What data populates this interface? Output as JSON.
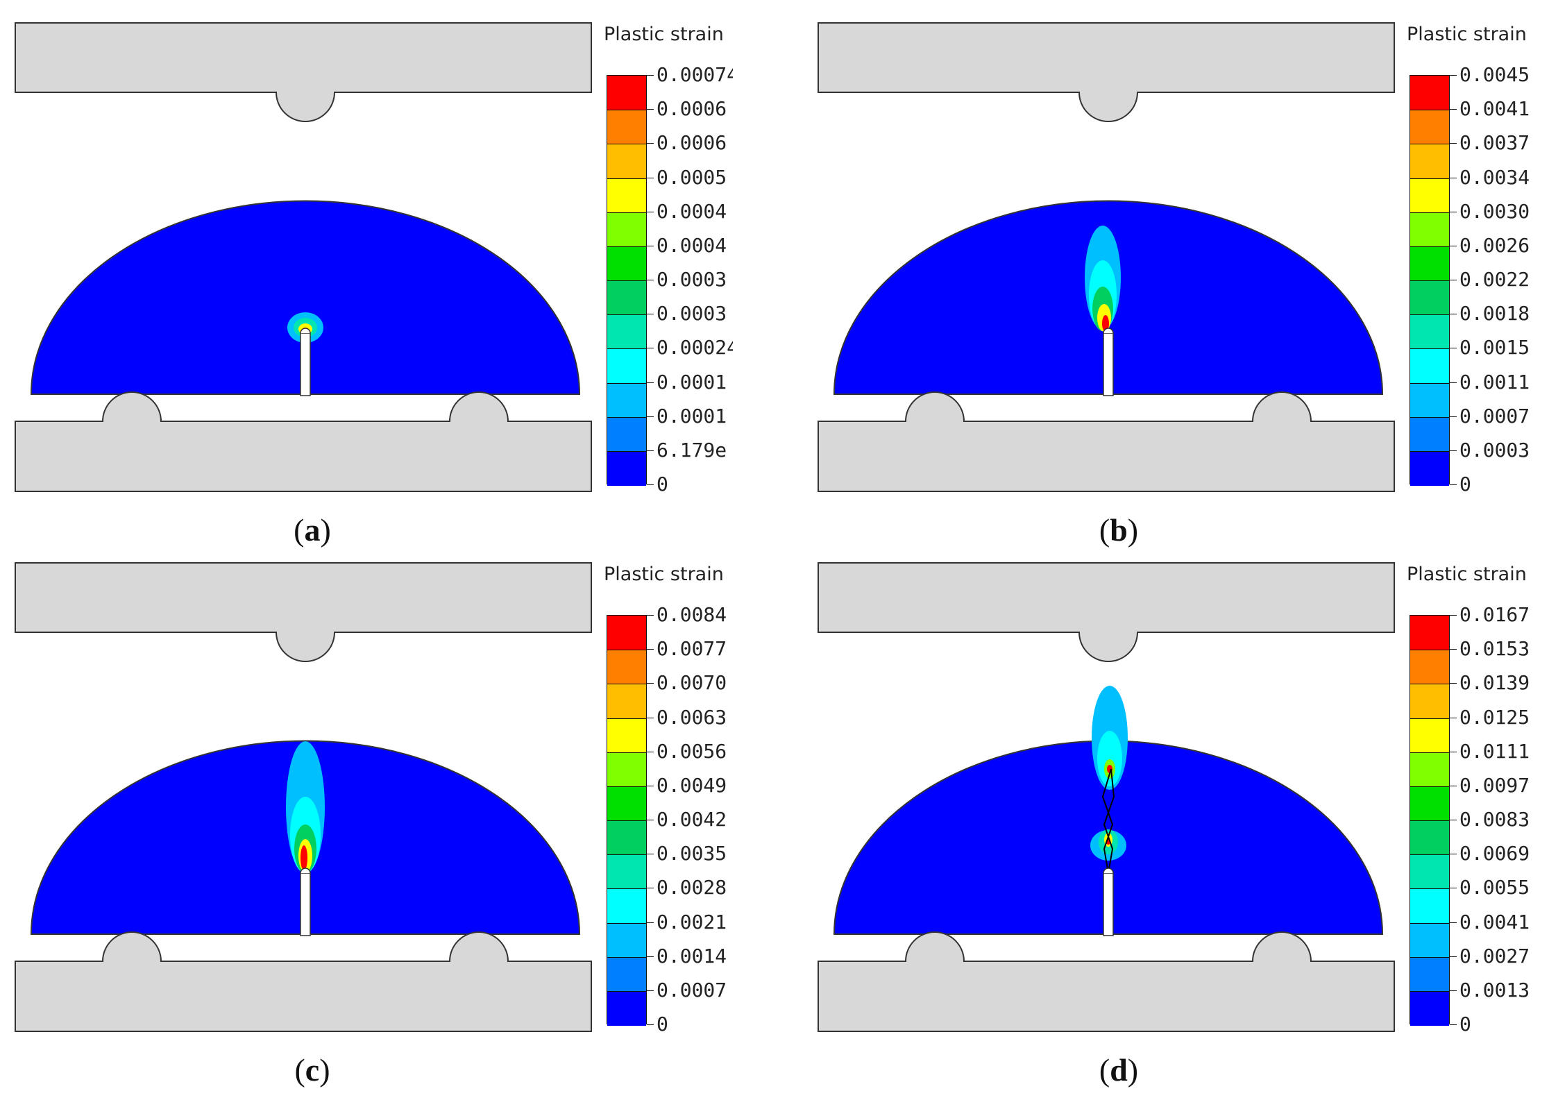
{
  "legend_colors": [
    "#ff0000",
    "#ff7f00",
    "#ffbf00",
    "#ffff00",
    "#7fff00",
    "#00e000",
    "#00d060",
    "#00e6b0",
    "#00ffff",
    "#00bfff",
    "#0080ff",
    "#0000ff"
  ],
  "fill_colors": {
    "specimen": "#0000ff",
    "fixture": "#d8d8d8",
    "outline": "#333333",
    "crack": "#ffffff"
  },
  "panels": [
    {
      "id": "a",
      "caption_letter": "a",
      "legend_title": "Plastic strain",
      "legend_labels": [
        "0.00074",
        "0.0006",
        "0.0006",
        "0.0005",
        "0.0004",
        "0.0004",
        "0.0003",
        "0.0003",
        "0.00024",
        "0.0001",
        "0.0001",
        "6.179e",
        "0"
      ],
      "damage_stage": 1
    },
    {
      "id": "b",
      "caption_letter": "b",
      "legend_title": "Plastic strain",
      "legend_labels": [
        "0.0045",
        "0.0041",
        "0.0037",
        "0.0034",
        "0.0030",
        "0.0026",
        "0.0022",
        "0.0018",
        "0.0015",
        "0.0011",
        "0.0007",
        "0.0003",
        "0"
      ],
      "damage_stage": 2
    },
    {
      "id": "c",
      "caption_letter": "c",
      "legend_title": "Plastic strain",
      "legend_labels": [
        "0.0084",
        "0.0077",
        "0.0070",
        "0.0063",
        "0.0056",
        "0.0049",
        "0.0042",
        "0.0035",
        "0.0028",
        "0.0021",
        "0.0014",
        "0.0007",
        "0"
      ],
      "damage_stage": 3
    },
    {
      "id": "d",
      "caption_letter": "d",
      "legend_title": "Plastic strain",
      "legend_labels": [
        "0.0167",
        "0.0153",
        "0.0139",
        "0.0125",
        "0.0111",
        "0.0097",
        "0.0083",
        "0.0069",
        "0.0055",
        "0.0041",
        "0.0027",
        "0.0013",
        "0"
      ],
      "damage_stage": 4
    }
  ]
}
